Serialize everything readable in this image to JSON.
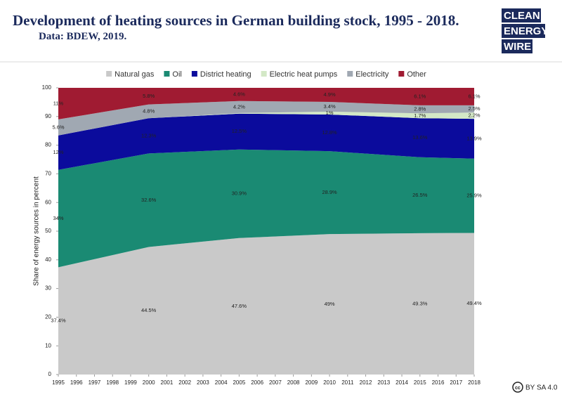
{
  "logo": [
    "CLEAN",
    "ENERGY",
    "WIRE"
  ],
  "license": "BY SA 4.0",
  "chart_data": {
    "type": "stacked_area",
    "title": "Development of heating sources in German building stock, 1995 - 2018.",
    "subtitle": "Data: BDEW, 2019.",
    "ylabel": "Share of energy sources in percent",
    "x": [
      1995,
      2000,
      2005,
      2010,
      2015,
      2018
    ],
    "xlim": [
      1995,
      2018
    ],
    "xticks": [
      1995,
      1996,
      1997,
      1998,
      1999,
      2000,
      2001,
      2002,
      2003,
      2004,
      2005,
      2006,
      2007,
      2008,
      2009,
      2010,
      2011,
      2012,
      2013,
      2014,
      2015,
      2016,
      2017,
      2018
    ],
    "ylim": [
      0,
      100
    ],
    "yticks": [
      0,
      10,
      20,
      30,
      40,
      50,
      60,
      70,
      80,
      90,
      100
    ],
    "series": [
      {
        "name": "Natural gas",
        "color": "#c9c9c9",
        "values": [
          37.4,
          44.5,
          47.6,
          49,
          49.3,
          49.4
        ],
        "value_labels": [
          "37.4%",
          "44.5%",
          "47.6%",
          "49%",
          "49.3%",
          "49.4%"
        ]
      },
      {
        "name": "Oil",
        "color": "#1a8a73",
        "values": [
          34,
          32.6,
          30.9,
          28.9,
          26.5,
          25.9
        ],
        "value_labels": [
          "34%",
          "32.6%",
          "30.9%",
          "28.9%",
          "26.5%",
          "25.9%"
        ]
      },
      {
        "name": "District heating",
        "color": "#0b0b9c",
        "values": [
          12,
          12.3,
          12.5,
          12.8,
          13.6,
          13.9
        ],
        "value_labels": [
          "12%",
          "12.3%",
          "12.5%",
          "12.8%",
          "13.6%",
          "13.9%"
        ]
      },
      {
        "name": "Electric heat pumps",
        "color": "#d3e8c6",
        "values": [
          0,
          0,
          0.2,
          1,
          1.7,
          2.2
        ],
        "value_labels": [
          null,
          null,
          null,
          "1%",
          "1.7%",
          "2.2%"
        ]
      },
      {
        "name": "Electricity",
        "color": "#a0a8b2",
        "values": [
          5.6,
          4.8,
          4.2,
          3.4,
          2.8,
          2.5
        ],
        "value_labels": [
          "5.6%",
          "4.8%",
          "4.2%",
          "3.4%",
          "2.8%",
          "2.5%"
        ]
      },
      {
        "name": "Other",
        "color": "#a01b32",
        "values": [
          11,
          5.8,
          4.6,
          4.9,
          6.1,
          6.1
        ],
        "value_labels": [
          "11%",
          "5.8%",
          "4.6%",
          "4.9%",
          "6.1%",
          "6.1%"
        ]
      }
    ]
  }
}
